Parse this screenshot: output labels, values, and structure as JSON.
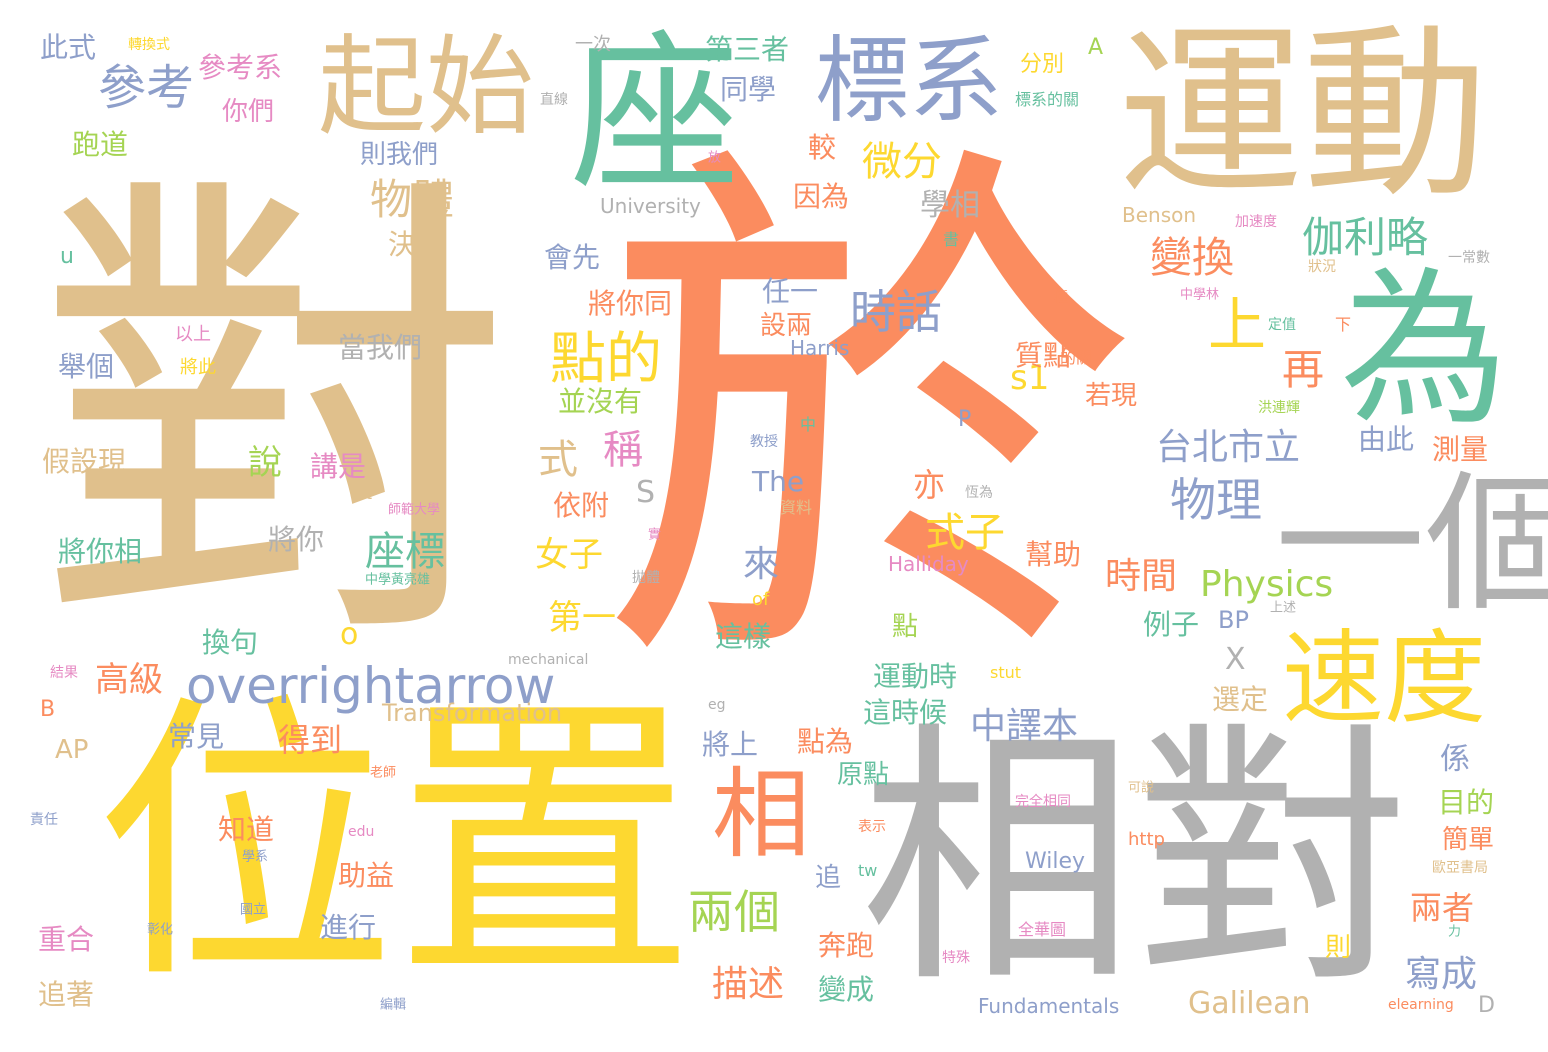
{
  "colors": {
    "tan": "#e0c08c",
    "orange": "#fb8c5f",
    "green": "#66c09f",
    "yellow": "#fdd830",
    "grey": "#b1b1b1",
    "blue": "#8e9fca",
    "pink": "#e68ac3",
    "lime": "#a5d453"
  },
  "words": [
    {
      "text": "於",
      "color": "orange"
    },
    {
      "text": "對",
      "color": "tan"
    },
    {
      "text": "位置",
      "color": "yellow"
    },
    {
      "text": "相對",
      "color": "grey"
    },
    {
      "text": "運動",
      "color": "tan"
    },
    {
      "text": "座",
      "color": "green"
    },
    {
      "text": "為",
      "color": "green"
    },
    {
      "text": "一個",
      "color": "grey"
    },
    {
      "text": "起始",
      "color": "tan"
    },
    {
      "text": "標系",
      "color": "blue"
    },
    {
      "text": "速度",
      "color": "yellow"
    },
    {
      "text": "相",
      "color": "orange"
    },
    {
      "text": "overrightarrow",
      "color": "blue"
    },
    {
      "text": "參考",
      "color": "blue"
    },
    {
      "text": "物體",
      "color": "tan"
    },
    {
      "text": "點的",
      "color": "yellow"
    },
    {
      "text": "時話",
      "color": "blue"
    },
    {
      "text": "微分",
      "color": "yellow"
    },
    {
      "text": "變換",
      "color": "orange"
    },
    {
      "text": "伽利略",
      "color": "green"
    },
    {
      "text": "上",
      "color": "yellow"
    },
    {
      "text": "物理",
      "color": "blue"
    },
    {
      "text": "台北市立",
      "color": "blue"
    },
    {
      "text": "s1",
      "color": "yellow"
    },
    {
      "text": "再",
      "color": "orange"
    },
    {
      "text": "Physics",
      "color": "lime"
    },
    {
      "text": "時間",
      "color": "orange"
    },
    {
      "text": "式子",
      "color": "yellow"
    },
    {
      "text": "座標",
      "color": "green"
    },
    {
      "text": "兩個",
      "color": "lime"
    },
    {
      "text": "中譯本",
      "color": "blue"
    },
    {
      "text": "描述",
      "color": "orange"
    },
    {
      "text": "寫成",
      "color": "blue"
    },
    {
      "text": "兩者",
      "color": "orange"
    },
    {
      "text": "第一",
      "color": "yellow"
    },
    {
      "text": "女子",
      "color": "yellow"
    },
    {
      "text": "式",
      "color": "tan"
    },
    {
      "text": "稱",
      "color": "pink"
    },
    {
      "text": "說",
      "color": "lime"
    },
    {
      "text": "高級",
      "color": "orange"
    },
    {
      "text": "得到",
      "color": "orange"
    },
    {
      "text": "第三者",
      "color": "green"
    },
    {
      "text": "參考系",
      "color": "pink"
    },
    {
      "text": "此式",
      "color": "blue"
    },
    {
      "text": "跑道",
      "color": "lime"
    },
    {
      "text": "你們",
      "color": "pink"
    },
    {
      "text": "同學",
      "color": "blue"
    },
    {
      "text": "則我們",
      "color": "blue"
    },
    {
      "text": "因為",
      "color": "orange"
    },
    {
      "text": "較",
      "color": "orange"
    },
    {
      "text": "學相",
      "color": "grey"
    },
    {
      "text": "決定",
      "color": "tan"
    },
    {
      "text": "會先",
      "color": "blue"
    },
    {
      "text": "將你同",
      "color": "orange"
    },
    {
      "text": "任一",
      "color": "blue"
    },
    {
      "text": "設兩",
      "color": "orange"
    },
    {
      "text": "當我們",
      "color": "grey"
    },
    {
      "text": "質點",
      "color": "orange"
    },
    {
      "text": "若現",
      "color": "orange"
    },
    {
      "text": "舉個",
      "color": "blue"
    },
    {
      "text": "並沒有",
      "color": "lime"
    },
    {
      "text": "假設現",
      "color": "tan"
    },
    {
      "text": "講是",
      "color": "pink"
    },
    {
      "text": "由此",
      "color": "blue"
    },
    {
      "text": "測量",
      "color": "orange"
    },
    {
      "text": "依附",
      "color": "orange"
    },
    {
      "text": "亦",
      "color": "orange"
    },
    {
      "text": "將你相",
      "color": "green"
    },
    {
      "text": "將你",
      "color": "grey"
    },
    {
      "text": "幫助",
      "color": "orange"
    },
    {
      "text": "例子",
      "color": "green"
    },
    {
      "text": "換句",
      "color": "green"
    },
    {
      "text": "這樣",
      "color": "green"
    },
    {
      "text": "運動時",
      "color": "green"
    },
    {
      "text": "這時候",
      "color": "green"
    },
    {
      "text": "選定",
      "color": "tan"
    },
    {
      "text": "常見",
      "color": "blue"
    },
    {
      "text": "將上",
      "color": "blue"
    },
    {
      "text": "點為",
      "color": "orange"
    },
    {
      "text": "係",
      "color": "blue"
    },
    {
      "text": "原點",
      "color": "green"
    },
    {
      "text": "目的",
      "color": "lime"
    },
    {
      "text": "知道",
      "color": "orange"
    },
    {
      "text": "簡單",
      "color": "orange"
    },
    {
      "text": "助益",
      "color": "orange"
    },
    {
      "text": "追",
      "color": "blue"
    },
    {
      "text": "進行",
      "color": "blue"
    },
    {
      "text": "重合",
      "color": "pink"
    },
    {
      "text": "追著",
      "color": "tan"
    },
    {
      "text": "奔跑",
      "color": "orange"
    },
    {
      "text": "變成",
      "color": "green"
    },
    {
      "text": "來",
      "color": "blue"
    },
    {
      "text": "點",
      "color": "lime"
    },
    {
      "text": "則",
      "color": "yellow"
    },
    {
      "text": "Galilean",
      "color": "tan"
    },
    {
      "text": "Transformation",
      "color": "tan"
    },
    {
      "text": "Fundamentals",
      "color": "blue"
    },
    {
      "text": "University",
      "color": "grey"
    },
    {
      "text": "Halliday",
      "color": "pink"
    },
    {
      "text": "Harris",
      "color": "blue"
    },
    {
      "text": "Wiley",
      "color": "blue"
    },
    {
      "text": "Benson",
      "color": "tan"
    },
    {
      "text": "The",
      "color": "blue"
    },
    {
      "text": "BP",
      "color": "blue"
    },
    {
      "text": "AP",
      "color": "tan"
    },
    {
      "text": "S",
      "color": "grey"
    },
    {
      "text": "X",
      "color": "grey"
    },
    {
      "text": "A",
      "color": "lime"
    },
    {
      "text": "P",
      "color": "blue"
    },
    {
      "text": "B",
      "color": "orange"
    },
    {
      "text": "D",
      "color": "grey"
    },
    {
      "text": "u",
      "color": "green"
    },
    {
      "text": "t",
      "color": "tan"
    },
    {
      "text": "o",
      "color": "yellow"
    },
    {
      "text": "一次",
      "color": "grey"
    },
    {
      "text": "分別",
      "color": "yellow"
    },
    {
      "text": "標系的關",
      "color": "green"
    },
    {
      "text": "轉換式",
      "color": "yellow"
    },
    {
      "text": "直線",
      "color": "grey"
    },
    {
      "text": "加速度",
      "color": "pink"
    },
    {
      "text": "書",
      "color": "green"
    },
    {
      "text": "一常數",
      "color": "grey"
    },
    {
      "text": "狀況",
      "color": "tan"
    },
    {
      "text": "中學林",
      "color": "pink"
    },
    {
      "text": "一種",
      "color": "orange"
    },
    {
      "text": "定值",
      "color": "green"
    },
    {
      "text": "下",
      "color": "orange"
    },
    {
      "text": "的關",
      "color": "orange"
    },
    {
      "text": "洪連輝",
      "color": "lime"
    },
    {
      "text": "以上",
      "color": "pink"
    },
    {
      "text": "將此",
      "color": "yellow"
    },
    {
      "text": "教授",
      "color": "blue"
    },
    {
      "text": "中",
      "color": "green"
    },
    {
      "text": "恆為",
      "color": "grey"
    },
    {
      "text": "資料",
      "color": "tan"
    },
    {
      "text": "師範大學",
      "color": "pink"
    },
    {
      "text": "中學黃亮雄",
      "color": "green"
    },
    {
      "text": "拋體",
      "color": "grey"
    },
    {
      "text": "實",
      "color": "pink"
    },
    {
      "text": "of",
      "color": "yellow"
    },
    {
      "text": "上述",
      "color": "grey"
    },
    {
      "text": "mechanical",
      "color": "grey"
    },
    {
      "text": "stut",
      "color": "yellow"
    },
    {
      "text": "eg",
      "color": "grey"
    },
    {
      "text": "結果",
      "color": "pink"
    },
    {
      "text": "老師",
      "color": "orange"
    },
    {
      "text": "可說",
      "color": "tan"
    },
    {
      "text": "完全相同",
      "color": "pink"
    },
    {
      "text": "表示",
      "color": "orange"
    },
    {
      "text": "責任",
      "color": "blue"
    },
    {
      "text": "edu",
      "color": "pink"
    },
    {
      "text": "學系",
      "color": "blue"
    },
    {
      "text": "tw",
      "color": "green"
    },
    {
      "text": "http",
      "color": "orange"
    },
    {
      "text": "歐亞書局",
      "color": "tan"
    },
    {
      "text": "彰化",
      "color": "blue"
    },
    {
      "text": "國立",
      "color": "blue"
    },
    {
      "text": "全華圖",
      "color": "pink"
    },
    {
      "text": "力",
      "color": "green"
    },
    {
      "text": "特殊",
      "color": "pink"
    },
    {
      "text": "編輯",
      "color": "blue"
    },
    {
      "text": "elearning",
      "color": "orange"
    },
    {
      "text": "放",
      "color": "pink"
    }
  ]
}
